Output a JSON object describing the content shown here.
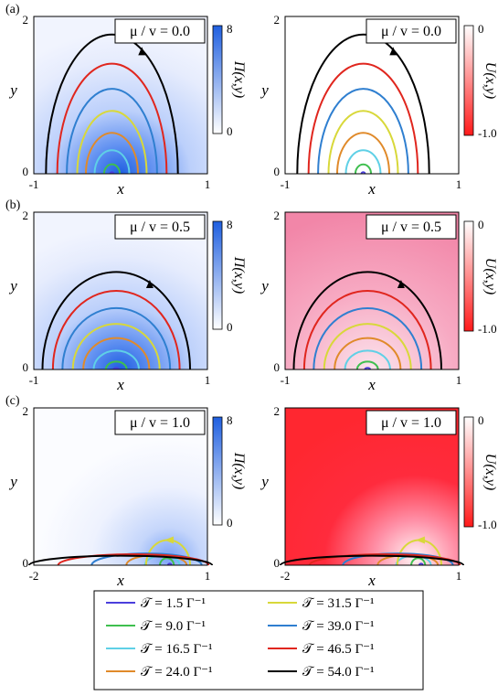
{
  "chart_data": {
    "type": "heatmap",
    "colorbars": {
      "Pi": {
        "label": "Π(x,y)",
        "ticks": [
          "8",
          "0"
        ],
        "range": [
          0,
          8
        ],
        "color_low": "#ffffff",
        "color_high": "#1f5fe0"
      },
      "U": {
        "label": "U(x,y)",
        "ticks": [
          "0",
          "-1.0"
        ],
        "range": [
          -1.0,
          0
        ],
        "color_low": "#ff1a1a",
        "color_high": "#ffffff"
      }
    },
    "legend": {
      "entries": [
        {
          "label": "𝒯 = 1.5 Γ⁻¹",
          "color": "#4b3fdc"
        },
        {
          "label": "𝒯 = 31.5 Γ⁻¹",
          "color": "#d8d83a"
        },
        {
          "label": "𝒯 = 9.0 Γ⁻¹",
          "color": "#3fbf4f"
        },
        {
          "label": "𝒯 = 39.0 Γ⁻¹",
          "color": "#2f7fd0"
        },
        {
          "label": "𝒯 = 16.5 Γ⁻¹",
          "color": "#5fd0e6"
        },
        {
          "label": "𝒯 = 46.5 Γ⁻¹",
          "color": "#e0261e"
        },
        {
          "label": "𝒯 = 24.0 Γ⁻¹",
          "color": "#e08a2a"
        },
        {
          "label": "𝒯 = 54.0 Γ⁻¹",
          "color": "#000000"
        }
      ]
    },
    "rows": [
      {
        "label": "(a)",
        "ratio_label": "μ / v = 0.0",
        "mu_over_v": 0.0,
        "x_range": [
          -1,
          1
        ],
        "y_range": [
          0,
          2
        ],
        "x_ticks": [
          "-1",
          "1"
        ],
        "y_ticks": [
          "2",
          "0"
        ],
        "xlabel": "x",
        "ylabel": "y",
        "panels": [
          {
            "field": "Pi",
            "background": "blue-peak"
          },
          {
            "field": "U",
            "background": "uniform-zero"
          }
        ],
        "contours": [
          {
            "T": 1.5,
            "cx": -0.1,
            "rx": 0.02,
            "ry": 0.02
          },
          {
            "T": 9.0,
            "cx": -0.1,
            "rx": 0.09,
            "ry": 0.12
          },
          {
            "T": 16.5,
            "cx": -0.1,
            "rx": 0.2,
            "ry": 0.3
          },
          {
            "T": 24.0,
            "cx": -0.1,
            "rx": 0.3,
            "ry": 0.52
          },
          {
            "T": 31.5,
            "cx": -0.1,
            "rx": 0.4,
            "ry": 0.8
          },
          {
            "T": 39.0,
            "cx": -0.1,
            "rx": 0.52,
            "ry": 1.08
          },
          {
            "T": 46.5,
            "cx": -0.1,
            "rx": 0.63,
            "ry": 1.4
          },
          {
            "T": 54.0,
            "cx": -0.1,
            "rx": 0.76,
            "ry": 1.77
          }
        ]
      },
      {
        "label": "(b)",
        "ratio_label": "μ / v = 0.5",
        "mu_over_v": 0.5,
        "x_range": [
          -1,
          1
        ],
        "y_range": [
          0,
          2
        ],
        "x_ticks": [
          "-1",
          "1"
        ],
        "y_ticks": [
          "2",
          "0"
        ],
        "xlabel": "x",
        "ylabel": "y",
        "panels": [
          {
            "field": "Pi",
            "background": "blue-peak"
          },
          {
            "field": "U",
            "background": "pink-mild"
          }
        ],
        "contours": [
          {
            "T": 1.5,
            "cx": -0.05,
            "rx": 0.03,
            "ry": 0.02
          },
          {
            "T": 9.0,
            "cx": -0.05,
            "rx": 0.12,
            "ry": 0.1
          },
          {
            "T": 16.5,
            "cx": -0.05,
            "rx": 0.26,
            "ry": 0.24
          },
          {
            "T": 24.0,
            "cx": -0.05,
            "rx": 0.38,
            "ry": 0.4
          },
          {
            "T": 31.5,
            "cx": -0.05,
            "rx": 0.5,
            "ry": 0.58
          },
          {
            "T": 39.0,
            "cx": -0.05,
            "rx": 0.62,
            "ry": 0.78
          },
          {
            "T": 46.5,
            "cx": -0.05,
            "rx": 0.73,
            "ry": 1.0
          },
          {
            "T": 54.0,
            "cx": -0.05,
            "rx": 0.85,
            "ry": 1.24
          }
        ]
      },
      {
        "label": "(c)",
        "ratio_label": "μ / v = 1.0",
        "mu_over_v": 1.0,
        "x_range": [
          -2,
          1
        ],
        "y_range": [
          0,
          2
        ],
        "x_ticks": [
          "-2",
          "1"
        ],
        "y_ticks": [
          "2",
          "0"
        ],
        "xlabel": "x",
        "ylabel": "y",
        "panels": [
          {
            "field": "Pi",
            "background": "blue-faint"
          },
          {
            "field": "U",
            "background": "red-strong"
          }
        ],
        "contours": [
          {
            "T": 1.5,
            "cx": 0.35,
            "rx": 0.03,
            "ry": 0.02
          },
          {
            "T": 9.0,
            "cx": 0.3,
            "rx": 0.12,
            "ry": 0.09
          },
          {
            "T": 16.5,
            "cx": 0.22,
            "rx": 0.3,
            "ry": 0.12
          },
          {
            "T": 24.0,
            "cx": 0.12,
            "rx": 0.52,
            "ry": 0.13
          },
          {
            "T": 31.5,
            "cx": 0.32,
            "rx": 0.38,
            "ry": 0.32
          },
          {
            "T": 39.0,
            "cx": -0.05,
            "rx": 0.95,
            "ry": 0.15
          },
          {
            "T": 46.5,
            "cx": -0.28,
            "rx": 1.3,
            "ry": 0.14
          },
          {
            "T": 54.0,
            "cx": -0.5,
            "rx": 1.58,
            "ry": 0.12
          }
        ]
      }
    ]
  }
}
